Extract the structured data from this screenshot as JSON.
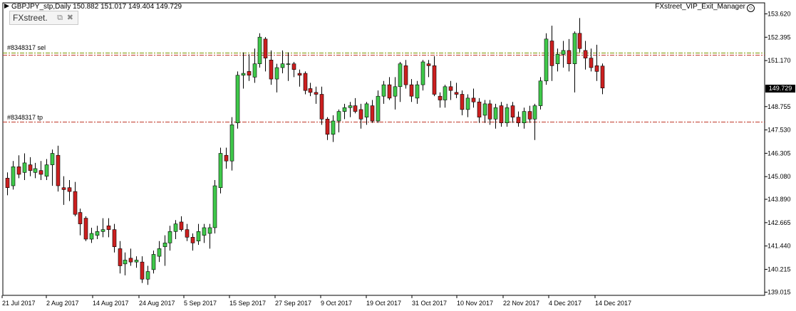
{
  "header": {
    "symbol_line": "GBPJPY_stp,Daily  150.882 151.017 149.404 149.729",
    "ea_name": "FXstreet_VIP_Exit_Manager",
    "ea_icon": "smiley-icon"
  },
  "badge": {
    "label": "FXstreet.",
    "restore_icon": "⧉",
    "close_icon": "✖"
  },
  "levels": {
    "sell_label": "#8348317 sel",
    "tp_label": "#8348317 tp",
    "sell_price": 151.58,
    "sell_line_color": "#7a9a00",
    "tp_price": 147.98,
    "tp_line_color": "#c0392b"
  },
  "current_price_label": "149.729",
  "colors": {
    "bull": "#3fc94a",
    "bear": "#cc1f1f",
    "wick": "#000000",
    "frame": "#000000",
    "price_tag_bg": "#000000"
  },
  "chart_data": {
    "type": "candlestick",
    "symbol": "GBPJPY_stp",
    "timeframe": "Daily",
    "ylim": [
      139.0,
      153.9
    ],
    "y_ticks": [
      "153.620",
      "152.395",
      "151.170",
      "149.729",
      "148.755",
      "147.530",
      "146.305",
      "145.080",
      "143.890",
      "142.665",
      "141.440",
      "140.215",
      "139.015"
    ],
    "x_ticks": [
      "21 Jul 2017",
      "2 Aug 2017",
      "14 Aug 2017",
      "24 Aug 2017",
      "5 Sep 2017",
      "15 Sep 2017",
      "27 Sep 2017",
      "9 Oct 2017",
      "19 Oct 2017",
      "31 Oct 2017",
      "10 Nov 2017",
      "22 Nov 2017",
      "4 Dec 2017",
      "14 Dec 2017"
    ],
    "ohlc": [
      [
        145.0,
        145.3,
        144.1,
        144.5
      ],
      [
        144.6,
        145.9,
        144.4,
        145.6
      ],
      [
        145.6,
        146.2,
        145.0,
        145.2
      ],
      [
        145.3,
        146.3,
        144.9,
        145.8
      ],
      [
        145.7,
        146.1,
        145.1,
        145.4
      ],
      [
        145.3,
        145.8,
        145.0,
        145.5
      ],
      [
        145.4,
        145.9,
        144.9,
        145.2
      ],
      [
        145.1,
        146.0,
        144.9,
        145.7
      ],
      [
        145.7,
        146.5,
        144.6,
        146.3
      ],
      [
        146.2,
        146.7,
        144.3,
        144.6
      ],
      [
        144.5,
        145.1,
        143.6,
        144.4
      ],
      [
        144.5,
        144.9,
        143.8,
        144.3
      ],
      [
        144.3,
        144.8,
        143.0,
        143.1
      ],
      [
        143.2,
        143.4,
        142.0,
        142.6
      ],
      [
        142.9,
        143.0,
        141.7,
        141.8
      ],
      [
        141.8,
        142.4,
        141.6,
        142.1
      ],
      [
        142.0,
        142.5,
        141.8,
        142.2
      ],
      [
        142.2,
        142.9,
        141.9,
        142.3
      ],
      [
        142.5,
        142.9,
        141.9,
        142.3
      ],
      [
        142.3,
        142.6,
        141.1,
        141.4
      ],
      [
        141.3,
        141.7,
        140.0,
        140.4
      ],
      [
        140.5,
        141.1,
        139.9,
        140.7
      ],
      [
        140.8,
        141.3,
        140.4,
        140.6
      ],
      [
        140.6,
        140.9,
        140.3,
        140.7
      ],
      [
        140.6,
        140.9,
        139.5,
        139.7
      ],
      [
        139.7,
        140.4,
        139.4,
        140.1
      ],
      [
        140.2,
        141.2,
        140.0,
        141.0
      ],
      [
        140.9,
        141.7,
        140.6,
        141.3
      ],
      [
        141.4,
        142.0,
        140.4,
        141.6
      ],
      [
        141.6,
        142.5,
        141.2,
        142.2
      ],
      [
        142.2,
        142.8,
        141.8,
        142.6
      ],
      [
        142.7,
        143.0,
        142.2,
        142.3
      ],
      [
        142.3,
        142.6,
        141.7,
        141.9
      ],
      [
        141.9,
        142.1,
        141.2,
        141.6
      ],
      [
        141.7,
        142.6,
        141.5,
        142.2
      ],
      [
        142.0,
        142.6,
        141.6,
        142.4
      ],
      [
        142.1,
        142.6,
        141.3,
        142.4
      ],
      [
        142.4,
        144.9,
        142.1,
        144.6
      ],
      [
        144.5,
        146.6,
        144.2,
        146.3
      ],
      [
        146.2,
        146.6,
        145.5,
        145.9
      ],
      [
        145.9,
        148.2,
        145.4,
        147.8
      ],
      [
        147.9,
        150.6,
        147.6,
        150.4
      ],
      [
        150.4,
        151.6,
        149.7,
        150.5
      ],
      [
        150.6,
        151.5,
        150.1,
        150.4
      ],
      [
        150.3,
        151.8,
        150.0,
        151.0
      ],
      [
        151.0,
        152.6,
        150.8,
        152.4
      ],
      [
        152.3,
        152.4,
        150.6,
        151.3
      ],
      [
        151.2,
        151.7,
        149.9,
        150.2
      ],
      [
        150.2,
        151.0,
        149.5,
        150.8
      ],
      [
        150.8,
        151.7,
        150.5,
        151.0
      ],
      [
        151.0,
        151.6,
        150.1,
        151.0
      ],
      [
        151.0,
        151.1,
        150.3,
        150.7
      ],
      [
        150.5,
        150.7,
        149.8,
        150.4
      ],
      [
        150.5,
        150.6,
        149.4,
        149.6
      ],
      [
        149.7,
        150.0,
        149.3,
        149.5
      ],
      [
        149.5,
        149.8,
        148.9,
        149.4
      ],
      [
        149.4,
        149.8,
        147.8,
        148.1
      ],
      [
        148.1,
        148.2,
        147.0,
        147.3
      ],
      [
        147.3,
        148.3,
        146.9,
        148.0
      ],
      [
        148.0,
        148.6,
        147.4,
        148.5
      ],
      [
        148.5,
        148.9,
        148.1,
        148.7
      ],
      [
        148.7,
        149.0,
        148.2,
        148.8
      ],
      [
        148.8,
        149.2,
        148.4,
        148.5
      ],
      [
        148.6,
        148.9,
        147.6,
        148.1
      ],
      [
        148.2,
        149.0,
        147.8,
        148.9
      ],
      [
        148.8,
        149.1,
        147.9,
        148.0
      ],
      [
        148.0,
        149.6,
        147.9,
        149.3
      ],
      [
        149.3,
        150.1,
        148.9,
        149.9
      ],
      [
        149.9,
        150.3,
        149.1,
        149.2
      ],
      [
        149.3,
        150.3,
        148.6,
        149.8
      ],
      [
        149.8,
        151.1,
        149.0,
        151.0
      ],
      [
        150.9,
        151.2,
        149.7,
        149.9
      ],
      [
        149.9,
        150.2,
        149.0,
        149.3
      ],
      [
        149.2,
        150.1,
        148.9,
        149.9
      ],
      [
        149.9,
        151.2,
        149.6,
        151.1
      ],
      [
        151.0,
        151.2,
        150.3,
        150.9
      ],
      [
        150.9,
        151.4,
        149.3,
        149.4
      ],
      [
        149.3,
        149.5,
        148.7,
        149.1
      ],
      [
        149.1,
        149.9,
        148.7,
        149.8
      ],
      [
        149.8,
        150.1,
        149.1,
        149.6
      ],
      [
        149.5,
        150.0,
        149.2,
        149.4
      ],
      [
        149.4,
        149.6,
        148.3,
        148.6
      ],
      [
        148.6,
        149.4,
        148.2,
        149.2
      ],
      [
        149.2,
        149.7,
        148.7,
        149.0
      ],
      [
        149.0,
        149.2,
        147.9,
        148.2
      ],
      [
        148.3,
        149.1,
        147.9,
        148.9
      ],
      [
        148.9,
        149.1,
        147.8,
        148.1
      ],
      [
        148.1,
        148.9,
        147.6,
        148.7
      ],
      [
        148.8,
        149.0,
        147.7,
        147.9
      ],
      [
        147.9,
        148.9,
        147.7,
        148.7
      ],
      [
        148.8,
        149.0,
        147.9,
        148.2
      ],
      [
        148.2,
        148.5,
        147.7,
        147.9
      ],
      [
        147.9,
        148.7,
        147.6,
        148.5
      ],
      [
        148.5,
        148.8,
        147.9,
        148.1
      ],
      [
        148.1,
        148.9,
        147.0,
        148.8
      ],
      [
        148.8,
        150.3,
        148.6,
        150.1
      ],
      [
        150.1,
        152.6,
        149.9,
        152.3
      ],
      [
        152.2,
        153.0,
        150.1,
        150.9
      ],
      [
        151.0,
        151.8,
        150.6,
        151.5
      ],
      [
        151.5,
        152.2,
        150.8,
        151.7
      ],
      [
        151.7,
        152.3,
        150.6,
        151.0
      ],
      [
        151.0,
        152.7,
        149.5,
        152.6
      ],
      [
        152.6,
        153.4,
        151.6,
        151.8
      ],
      [
        151.7,
        152.2,
        150.7,
        151.3
      ],
      [
        151.3,
        151.8,
        150.6,
        150.8
      ],
      [
        150.9,
        152.0,
        150.1,
        150.6
      ],
      [
        150.882,
        151.017,
        149.404,
        149.729
      ]
    ]
  }
}
